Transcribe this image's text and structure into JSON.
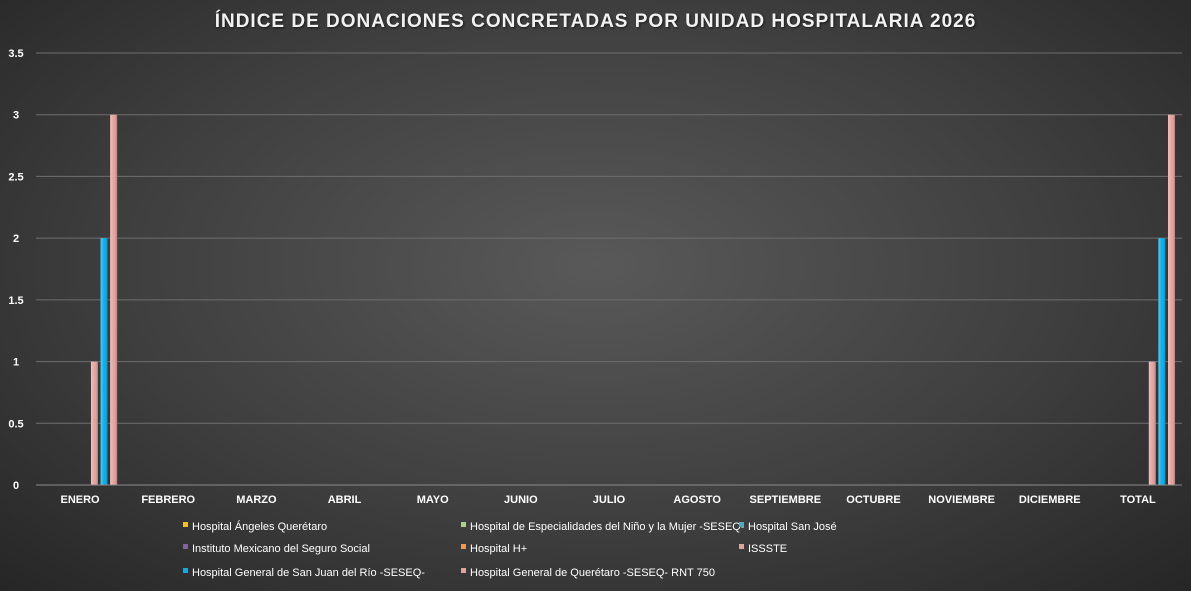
{
  "chart_data": {
    "type": "bar",
    "title": "ÍNDICE DE DONACIONES CONCRETADAS POR UNIDAD HOSPITALARIA 2026",
    "xlabel": "",
    "ylabel": "",
    "ylim": [
      0,
      3.5
    ],
    "yticks": [
      "0",
      "0.5",
      "1",
      "1.5",
      "2",
      "2.5",
      "3",
      "3.5"
    ],
    "grid": true,
    "legend_position": "bottom",
    "categories": [
      "ENERO",
      "FEBRERO",
      "MARZO",
      "ABRIL",
      "MAYO",
      "JUNIO",
      "JULIO",
      "AGOSTO",
      "SEPTIEMBRE",
      "OCTUBRE",
      "NOVIEMBRE",
      "DICIEMBRE",
      "TOTAL"
    ],
    "series": [
      {
        "name": "Hospital Ángeles Querétaro",
        "color": "#ffc000",
        "values": [
          0,
          0,
          0,
          0,
          0,
          0,
          0,
          0,
          0,
          0,
          0,
          0,
          0
        ]
      },
      {
        "name": "Hospital de Especialidades del Niño y la Mujer -SESEQ-",
        "color": "#a9d18e",
        "values": [
          0,
          0,
          0,
          0,
          0,
          0,
          0,
          0,
          0,
          0,
          0,
          0,
          0
        ]
      },
      {
        "name": "Hospital San José",
        "color": "#4bacc6",
        "values": [
          0,
          0,
          0,
          0,
          0,
          0,
          0,
          0,
          0,
          0,
          0,
          0,
          0
        ]
      },
      {
        "name": "Instituto Mexicano del Seguro Social",
        "color": "#8064a2",
        "values": [
          0,
          0,
          0,
          0,
          0,
          0,
          0,
          0,
          0,
          0,
          0,
          0,
          0
        ]
      },
      {
        "name": "Hospital H+",
        "color": "#f79646",
        "values": [
          0,
          0,
          0,
          0,
          0,
          0,
          0,
          0,
          0,
          0,
          0,
          0,
          0
        ]
      },
      {
        "name": "ISSSTE",
        "color": "#e6a19c",
        "values": [
          1,
          0,
          0,
          0,
          0,
          0,
          0,
          0,
          0,
          0,
          0,
          0,
          1
        ]
      },
      {
        "name": "Hospital General de San Juan del Río -SESEQ-",
        "color": "#00b0f0",
        "values": [
          2,
          0,
          0,
          0,
          0,
          0,
          0,
          0,
          0,
          0,
          0,
          0,
          2
        ]
      },
      {
        "name": "Hospital General de Querétaro -SESEQ- RNT 750",
        "color": "#e6a19c",
        "values": [
          3,
          0,
          0,
          0,
          0,
          0,
          0,
          0,
          0,
          0,
          0,
          0,
          3
        ]
      }
    ]
  }
}
